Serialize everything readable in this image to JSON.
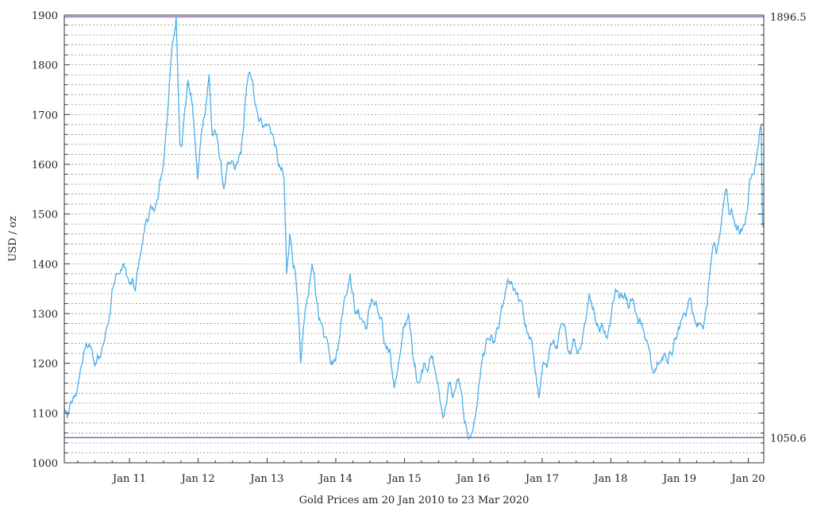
{
  "chart_data": {
    "type": "line",
    "title": "",
    "xlabel": "Gold Prices am 20 Jan 2010 to 23 Mar 2020",
    "ylabel": "USD / oz",
    "ylim": [
      1000,
      1900
    ],
    "yticks": [
      1000,
      1100,
      1200,
      1300,
      1400,
      1500,
      1600,
      1700,
      1800,
      1900
    ],
    "y_minor_step": 20,
    "xlim": [
      "2010-01-20",
      "2020-03-23"
    ],
    "xticks": [
      {
        "date": "2011-01-01",
        "label": "Jan 11"
      },
      {
        "date": "2012-01-01",
        "label": "Jan 12"
      },
      {
        "date": "2013-01-01",
        "label": "Jan 13"
      },
      {
        "date": "2014-01-01",
        "label": "Jan 14"
      },
      {
        "date": "2015-01-01",
        "label": "Jan 15"
      },
      {
        "date": "2016-01-01",
        "label": "Jan 16"
      },
      {
        "date": "2017-01-01",
        "label": "Jan 17"
      },
      {
        "date": "2018-01-01",
        "label": "Jan 18"
      },
      {
        "date": "2019-01-01",
        "label": "Jan 19"
      },
      {
        "date": "2020-01-01",
        "label": "Jan 20"
      }
    ],
    "grid": true,
    "legend": "none",
    "reference_lines": [
      {
        "value": 1896.5,
        "label": "1896.5",
        "color": "#7b5ea7"
      },
      {
        "value": 1050.6,
        "label": "1050.6",
        "color": "#7b5ea7"
      }
    ],
    "line_color": "#4aaee8",
    "series": [
      {
        "x": [
          "2010-01-20",
          "2010-02-05",
          "2010-03-01",
          "2010-04-01",
          "2010-05-01",
          "2010-06-01",
          "2010-07-01",
          "2010-08-01",
          "2010-09-01",
          "2010-10-01",
          "2010-11-01",
          "2010-12-01",
          "2011-01-01",
          "2011-02-01",
          "2011-03-01",
          "2011-04-01",
          "2011-05-01",
          "2011-06-01",
          "2011-07-01",
          "2011-08-01",
          "2011-08-22",
          "2011-09-06",
          "2011-09-26",
          "2011-10-15",
          "2011-11-08",
          "2011-12-01",
          "2011-12-29",
          "2012-01-15",
          "2012-02-28",
          "2012-03-15",
          "2012-04-15",
          "2012-05-16",
          "2012-06-15",
          "2012-07-15",
          "2012-08-15",
          "2012-09-15",
          "2012-10-05",
          "2012-11-01",
          "2012-12-01",
          "2013-01-01",
          "2013-02-01",
          "2013-03-01",
          "2013-04-01",
          "2013-04-15",
          "2013-05-01",
          "2013-06-01",
          "2013-06-28",
          "2013-07-15",
          "2013-08-28",
          "2013-09-15",
          "2013-10-15",
          "2013-11-15",
          "2013-12-31",
          "2014-01-15",
          "2014-02-15",
          "2014-03-17",
          "2014-04-15",
          "2014-05-15",
          "2014-06-15",
          "2014-07-10",
          "2014-08-15",
          "2014-09-15",
          "2014-10-15",
          "2014-11-07",
          "2014-11-30",
          "2015-01-22",
          "2015-02-15",
          "2015-03-17",
          "2015-04-15",
          "2015-05-15",
          "2015-06-15",
          "2015-07-24",
          "2015-08-24",
          "2015-09-15",
          "2015-10-15",
          "2015-11-15",
          "2015-12-17",
          "2016-01-15",
          "2016-02-11",
          "2016-03-15",
          "2016-04-15",
          "2016-05-15",
          "2016-06-15",
          "2016-07-06",
          "2016-08-15",
          "2016-09-15",
          "2016-10-15",
          "2016-11-15",
          "2016-12-15",
          "2017-01-15",
          "2017-02-15",
          "2017-03-15",
          "2017-04-15",
          "2017-05-15",
          "2017-06-15",
          "2017-07-10",
          "2017-08-15",
          "2017-09-08",
          "2017-10-15",
          "2017-11-15",
          "2017-12-12",
          "2018-01-25",
          "2018-02-15",
          "2018-03-15",
          "2018-04-15",
          "2018-05-15",
          "2018-06-15",
          "2018-07-15",
          "2018-08-16",
          "2018-09-15",
          "2018-10-15",
          "2018-11-15",
          "2018-12-15",
          "2019-01-15",
          "2019-02-20",
          "2019-03-15",
          "2019-04-25",
          "2019-05-15",
          "2019-06-15",
          "2019-07-15",
          "2019-08-15",
          "2019-09-04",
          "2019-09-20",
          "2019-10-15",
          "2019-11-15",
          "2019-12-15",
          "2020-01-08",
          "2020-01-31",
          "2020-02-24",
          "2020-03-09",
          "2020-03-16",
          "2020-03-23"
        ],
        "values": [
          1110,
          1090,
          1120,
          1150,
          1215,
          1240,
          1195,
          1215,
          1270,
          1350,
          1380,
          1400,
          1360,
          1345,
          1420,
          1490,
          1510,
          1530,
          1600,
          1760,
          1850,
          1896.5,
          1640,
          1680,
          1770,
          1720,
          1570,
          1650,
          1780,
          1660,
          1645,
          1550,
          1600,
          1590,
          1620,
          1760,
          1780,
          1720,
          1690,
          1680,
          1660,
          1600,
          1570,
          1380,
          1460,
          1380,
          1200,
          1280,
          1400,
          1340,
          1280,
          1250,
          1205,
          1240,
          1330,
          1380,
          1300,
          1290,
          1270,
          1330,
          1300,
          1240,
          1230,
          1150,
          1200,
          1300,
          1210,
          1160,
          1200,
          1210,
          1180,
          1090,
          1160,
          1130,
          1170,
          1080,
          1050.6,
          1100,
          1190,
          1250,
          1240,
          1270,
          1330,
          1365,
          1340,
          1325,
          1260,
          1220,
          1130,
          1200,
          1240,
          1230,
          1280,
          1230,
          1250,
          1220,
          1280,
          1340,
          1280,
          1280,
          1250,
          1350,
          1330,
          1340,
          1330,
          1300,
          1280,
          1240,
          1180,
          1200,
          1220,
          1220,
          1250,
          1290,
          1330,
          1300,
          1280,
          1290,
          1400,
          1420,
          1500,
          1550,
          1500,
          1490,
          1460,
          1480,
          1570,
          1580,
          1640,
          1680,
          1490,
          1475
        ]
      }
    ]
  }
}
